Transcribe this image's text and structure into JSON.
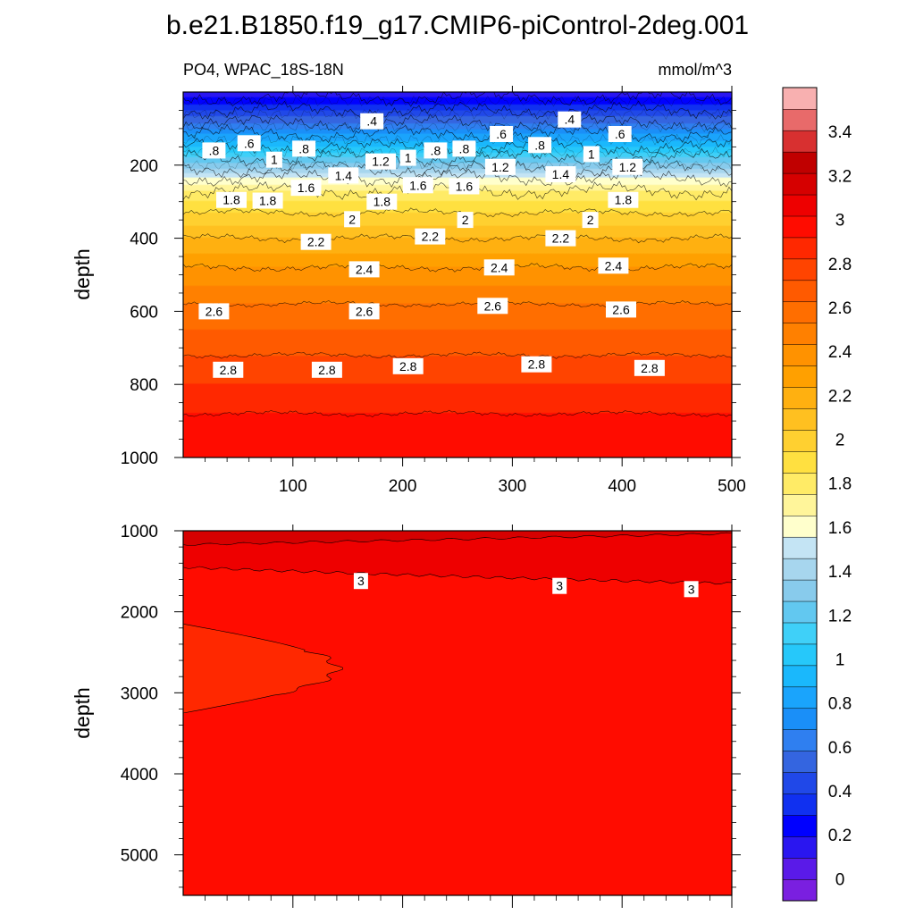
{
  "chart_data": [
    {
      "type": "heatmap",
      "title": "b.e21.B1850.f19_g17.CMIP6-piControl-2deg.001",
      "subtitle_left": "PO4, WPAC_18S-18N",
      "subtitle_right": "mmol/m^3",
      "ylabel": "depth",
      "xlabel": "",
      "xlim": [
        0,
        500
      ],
      "ylim": [
        1000,
        0
      ],
      "x_ticks": [
        "100",
        "200",
        "300",
        "400",
        "500"
      ],
      "y_ticks": [
        "200",
        "400",
        "600",
        "800",
        "1000"
      ],
      "contour_levels": [
        0.2,
        0.4,
        0.6,
        0.8,
        1.0,
        1.2,
        1.4,
        1.6,
        1.8,
        2.0,
        2.2,
        2.4,
        2.6,
        2.8,
        3.0
      ],
      "contour_depths": [
        {
          "level": 0.2,
          "depth": 15
        },
        {
          "level": 0.4,
          "depth": 50
        },
        {
          "level": 0.6,
          "depth": 85
        },
        {
          "level": 0.8,
          "depth": 115
        },
        {
          "level": 1.0,
          "depth": 150
        },
        {
          "level": 1.2,
          "depth": 180
        },
        {
          "level": 1.4,
          "depth": 210
        },
        {
          "level": 1.6,
          "depth": 235
        },
        {
          "level": 1.8,
          "depth": 270
        },
        {
          "level": 2.0,
          "depth": 330
        },
        {
          "level": 2.2,
          "depth": 400
        },
        {
          "level": 2.4,
          "depth": 480
        },
        {
          "level": 2.6,
          "depth": 580
        },
        {
          "level": 2.8,
          "depth": 720
        },
        {
          "level": 3.0,
          "depth": 880
        }
      ],
      "contour_labels": [
        {
          "text": ".8",
          "x": 28,
          "depth": 160
        },
        {
          "text": ".6",
          "x": 60,
          "depth": 140
        },
        {
          "text": ".4",
          "x": 172,
          "depth": 80
        },
        {
          "text": ".8",
          "x": 110,
          "depth": 155
        },
        {
          "text": "1",
          "x": 83,
          "depth": 185
        },
        {
          "text": "1.2",
          "x": 180,
          "depth": 190
        },
        {
          "text": "1",
          "x": 205,
          "depth": 180
        },
        {
          "text": ".8",
          "x": 230,
          "depth": 160
        },
        {
          "text": ".8",
          "x": 256,
          "depth": 155
        },
        {
          "text": ".6",
          "x": 290,
          "depth": 115
        },
        {
          "text": ".8",
          "x": 325,
          "depth": 145
        },
        {
          "text": ".4",
          "x": 352,
          "depth": 75
        },
        {
          "text": "1",
          "x": 372,
          "depth": 170
        },
        {
          "text": ".6",
          "x": 398,
          "depth": 115
        },
        {
          "text": "1.2",
          "x": 289,
          "depth": 205
        },
        {
          "text": "1.4",
          "x": 146,
          "depth": 228
        },
        {
          "text": "1.6",
          "x": 112,
          "depth": 262
        },
        {
          "text": "1.6",
          "x": 214,
          "depth": 255
        },
        {
          "text": "1.6",
          "x": 256,
          "depth": 258
        },
        {
          "text": "1.4",
          "x": 344,
          "depth": 225
        },
        {
          "text": "1.2",
          "x": 405,
          "depth": 205
        },
        {
          "text": "1.8",
          "x": 44,
          "depth": 295
        },
        {
          "text": "1.8",
          "x": 77,
          "depth": 297
        },
        {
          "text": "1.8",
          "x": 181,
          "depth": 300
        },
        {
          "text": "1.8",
          "x": 401,
          "depth": 295
        },
        {
          "text": "2",
          "x": 154,
          "depth": 348
        },
        {
          "text": "2",
          "x": 257,
          "depth": 350
        },
        {
          "text": "2",
          "x": 371,
          "depth": 350
        },
        {
          "text": "2.2",
          "x": 121,
          "depth": 410
        },
        {
          "text": "2.2",
          "x": 225,
          "depth": 395
        },
        {
          "text": "2.2",
          "x": 344,
          "depth": 400
        },
        {
          "text": "2.4",
          "x": 165,
          "depth": 485
        },
        {
          "text": "2.4",
          "x": 288,
          "depth": 480
        },
        {
          "text": "2.4",
          "x": 392,
          "depth": 475
        },
        {
          "text": "2.6",
          "x": 28,
          "depth": 600
        },
        {
          "text": "2.6",
          "x": 165,
          "depth": 600
        },
        {
          "text": "2.6",
          "x": 282,
          "depth": 585
        },
        {
          "text": "2.6",
          "x": 399,
          "depth": 595
        },
        {
          "text": "2.8",
          "x": 41,
          "depth": 760
        },
        {
          "text": "2.8",
          "x": 131,
          "depth": 760
        },
        {
          "text": "2.8",
          "x": 205,
          "depth": 750
        },
        {
          "text": "2.8",
          "x": 322,
          "depth": 745
        },
        {
          "text": "2.8",
          "x": 425,
          "depth": 755
        }
      ]
    },
    {
      "type": "heatmap",
      "ylabel": "depth",
      "xlabel": "",
      "xlim": [
        0,
        500
      ],
      "ylim": [
        5500,
        1000
      ],
      "y_ticks": [
        "1000",
        "2000",
        "3000",
        "4000",
        "5000"
      ],
      "regions": [
        {
          "level_range": [
            3.2,
            3.4
          ],
          "depth_top": 1000,
          "depth_bottom": 1070
        },
        {
          "level_range": [
            3.0,
            3.2
          ],
          "depth_top": 1070,
          "depth_bottom": 1680
        },
        {
          "level_range": [
            2.8,
            3.0
          ],
          "note": "lens on west side",
          "depth_top": 2150,
          "depth_bottom": 3250,
          "x_extent": [
            0,
            140
          ]
        }
      ],
      "contour_labels": [
        {
          "text": "3",
          "x": 162,
          "depth": 1620
        },
        {
          "text": "3",
          "x": 343,
          "depth": 1680
        },
        {
          "text": "3",
          "x": 463,
          "depth": 1720
        }
      ]
    }
  ],
  "colorbar": {
    "labels": [
      "0",
      "0.2",
      "0.4",
      "0.6",
      "0.8",
      "1",
      "1.2",
      "1.4",
      "1.6",
      "1.8",
      "2",
      "2.2",
      "2.4",
      "2.6",
      "2.8",
      "3",
      "3.2",
      "3.4"
    ],
    "colors_bottom_to_top": [
      "#7a1fe0",
      "#5a1ae8",
      "#2a16f0",
      "#0000ff",
      "#1030f0",
      "#2048e8",
      "#3465e0",
      "#2f7ff0",
      "#1a8ff8",
      "#1aa4fc",
      "#1ab8fc",
      "#26c8fa",
      "#3fd0f8",
      "#62c8f0",
      "#88cbec",
      "#a7d6ee",
      "#c4e4f4",
      "#ffffcc",
      "#fff59a",
      "#ffeb66",
      "#ffe040",
      "#ffd030",
      "#ffc020",
      "#ffb010",
      "#ffa000",
      "#ff9200",
      "#ff8000",
      "#ff6e00",
      "#ff5a00",
      "#ff4400",
      "#ff2800",
      "#ff0c00",
      "#ee0000",
      "#d60000",
      "#c00000",
      "#d83030",
      "#e86a6a",
      "#f8b0b0"
    ]
  }
}
